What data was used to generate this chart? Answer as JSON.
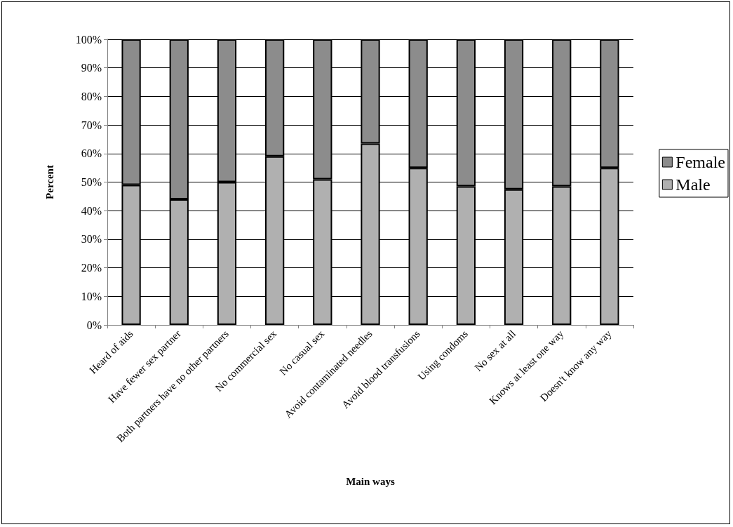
{
  "chart_data": {
    "type": "bar",
    "stacked": true,
    "xlabel": "Main ways",
    "ylabel": "Percent",
    "categories": [
      "Heard of aids",
      "Have fewer sex partner",
      "Both partners have no other partners",
      "No commercial sex",
      "No casual sex",
      "Avoid contaminated needles",
      "Avoid blood transfusions",
      "Using condoms",
      "No sex at all",
      "Knows at least one way",
      "Doesn't know any way"
    ],
    "series": [
      {
        "name": "Male",
        "color": "#b0b0b0",
        "values": [
          49,
          44,
          50,
          59,
          51,
          63.5,
          55,
          48.5,
          47.5,
          48.5,
          55
        ]
      },
      {
        "name": "Female",
        "color": "#8c8c8c",
        "values": [
          51,
          56,
          50,
          41,
          49,
          36.5,
          45,
          51.5,
          52.5,
          51.5,
          45
        ]
      }
    ],
    "ylim": [
      0,
      100
    ],
    "yticks": [
      {
        "value": 0,
        "label": "0%"
      },
      {
        "value": 10,
        "label": "10%"
      },
      {
        "value": 20,
        "label": "20%"
      },
      {
        "value": 30,
        "label": "30%"
      },
      {
        "value": 40,
        "label": "40%"
      },
      {
        "value": 50,
        "label": "50%"
      },
      {
        "value": 60,
        "label": "60%"
      },
      {
        "value": 70,
        "label": "70%"
      },
      {
        "value": 80,
        "label": "80%"
      },
      {
        "value": 90,
        "label": "90%"
      },
      {
        "value": 100,
        "label": "100%"
      }
    ],
    "grid": "y",
    "legend": "right"
  }
}
